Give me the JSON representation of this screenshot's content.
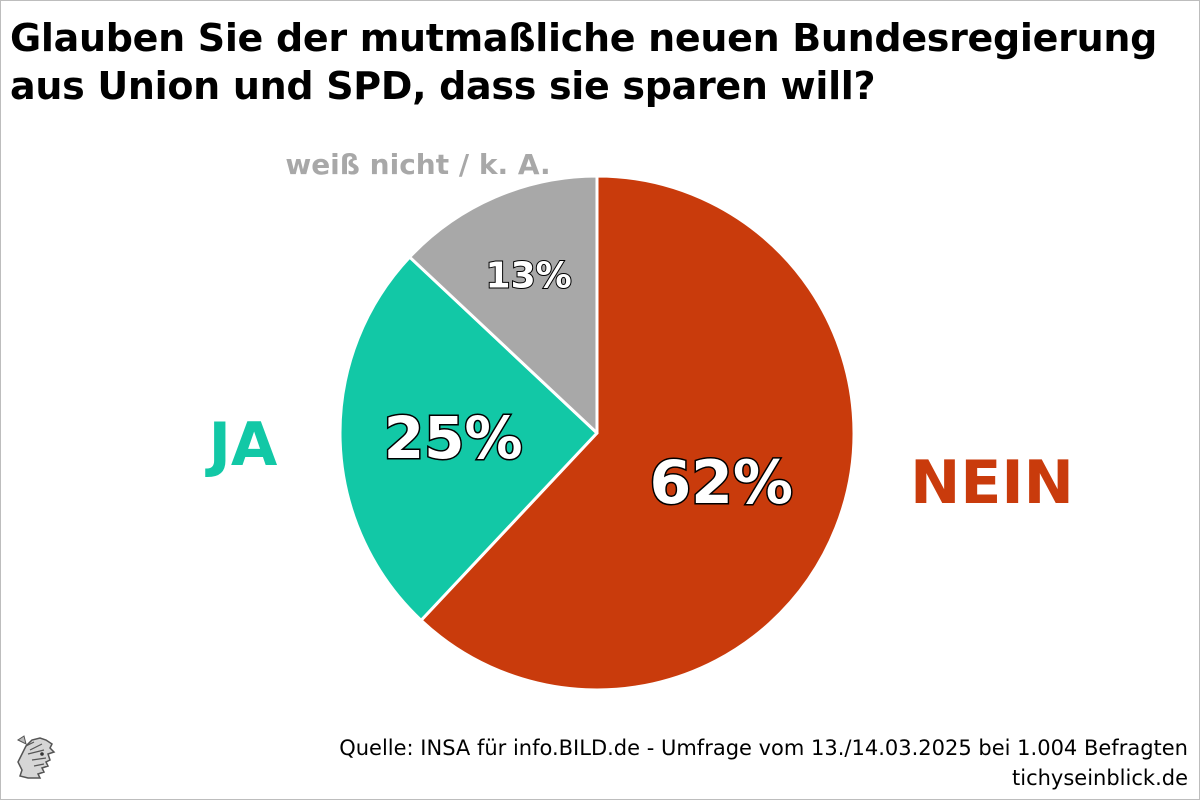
{
  "title": {
    "line1": "Glauben Sie der mutmaßliche neuen Bundesregierung",
    "line2": "aus Union und SPD, dass sie sparen will?"
  },
  "chart_data": {
    "type": "pie",
    "title": "Glauben Sie der mutmaßliche neuen Bundesregierung aus Union und SPD, dass sie sparen will?",
    "unit": "%",
    "slices": [
      {
        "label": "NEIN",
        "value": 62,
        "value_label": "62%",
        "color": "#c93b0c"
      },
      {
        "label": "JA",
        "value": 25,
        "value_label": "25%",
        "color": "#12c8a6"
      },
      {
        "label": "weiß nicht / k. A.",
        "value": 13,
        "value_label": "13%",
        "color": "#a8a8a8"
      }
    ],
    "start": "12 o'clock",
    "direction": "clockwise"
  },
  "footer": {
    "source": "Quelle: INSA für info.BILD.de - Umfrage vom 13./14.03.2025 bei 1.004 Befragten",
    "site": "tichyseinblick.de"
  },
  "logo": {
    "icon": "hermes-head-icon"
  }
}
